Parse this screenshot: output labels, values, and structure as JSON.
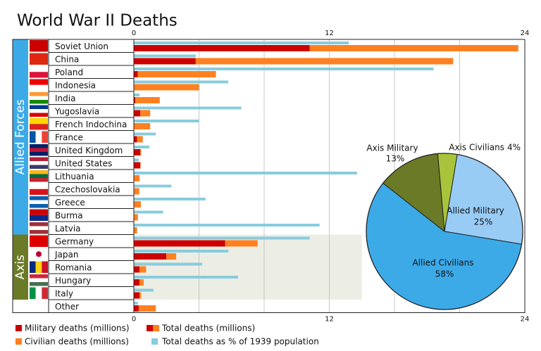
{
  "chart_data": [
    {
      "type": "bar",
      "orientation": "horizontal",
      "title": "World War II Deaths",
      "groups": [
        {
          "label": "Allied Forces",
          "categories": [
            "Soviet Union",
            "China",
            "Poland",
            "Indonesia",
            "India",
            "Yugoslavia",
            "French Indochina",
            "France",
            "United Kingdom",
            "United States",
            "Lithuania",
            "Czechoslovakia",
            "Greece",
            "Burma",
            "Latvia"
          ]
        },
        {
          "label": "Axis",
          "categories": [
            "Germany",
            "Japan",
            "Romania",
            "Hungary",
            "Italy"
          ]
        },
        {
          "categories": [
            "Other"
          ]
        }
      ],
      "series": [
        {
          "name": "Military deaths (millions)",
          "color": "#cc0000",
          "values": [
            10.8,
            3.8,
            0.24,
            0,
            0.09,
            0.4,
            0,
            0.2,
            0.4,
            0.4,
            0,
            0.03,
            0.03,
            0,
            0,
            5.6,
            2.0,
            0.35,
            0.35,
            0.35,
            0.3
          ]
        },
        {
          "name": "Civilian deaths (millions)",
          "color": "#ff8020",
          "values": [
            12.8,
            15.8,
            4.8,
            4.0,
            1.5,
            0.6,
            1.0,
            0.35,
            0.05,
            0.02,
            0.35,
            0.3,
            0.4,
            0.25,
            0.2,
            2.0,
            0.6,
            0.4,
            0.25,
            0.1,
            1.05
          ]
        },
        {
          "name": "Total deaths as % of 1939 population",
          "color": "#88ccdd",
          "values": [
            13.2,
            3.8,
            18.4,
            5.8,
            0.35,
            6.6,
            4.0,
            1.35,
            0.95,
            0.3,
            13.7,
            2.3,
            4.4,
            1.8,
            11.4,
            10.8,
            5.8,
            4.2,
            6.4,
            1.2,
            0.25
          ]
        }
      ],
      "legend_total": "Total deaths (millions)",
      "xlim": [
        0,
        24
      ],
      "xticks": [
        0,
        12,
        24
      ],
      "minor_xticks": [
        4,
        8,
        16,
        20
      ],
      "grid": true
    },
    {
      "type": "pie",
      "labels": [
        "Axis Civilians",
        "Allied Military",
        "Allied Civilians",
        "Axis Military"
      ],
      "values": [
        4,
        25,
        58,
        13
      ],
      "value_labels": [
        "4%",
        "25%",
        "58%",
        "13%"
      ],
      "colors": [
        "#a8c43a",
        "#99ccf5",
        "#3daae8",
        "#6b7a26"
      ]
    }
  ]
}
